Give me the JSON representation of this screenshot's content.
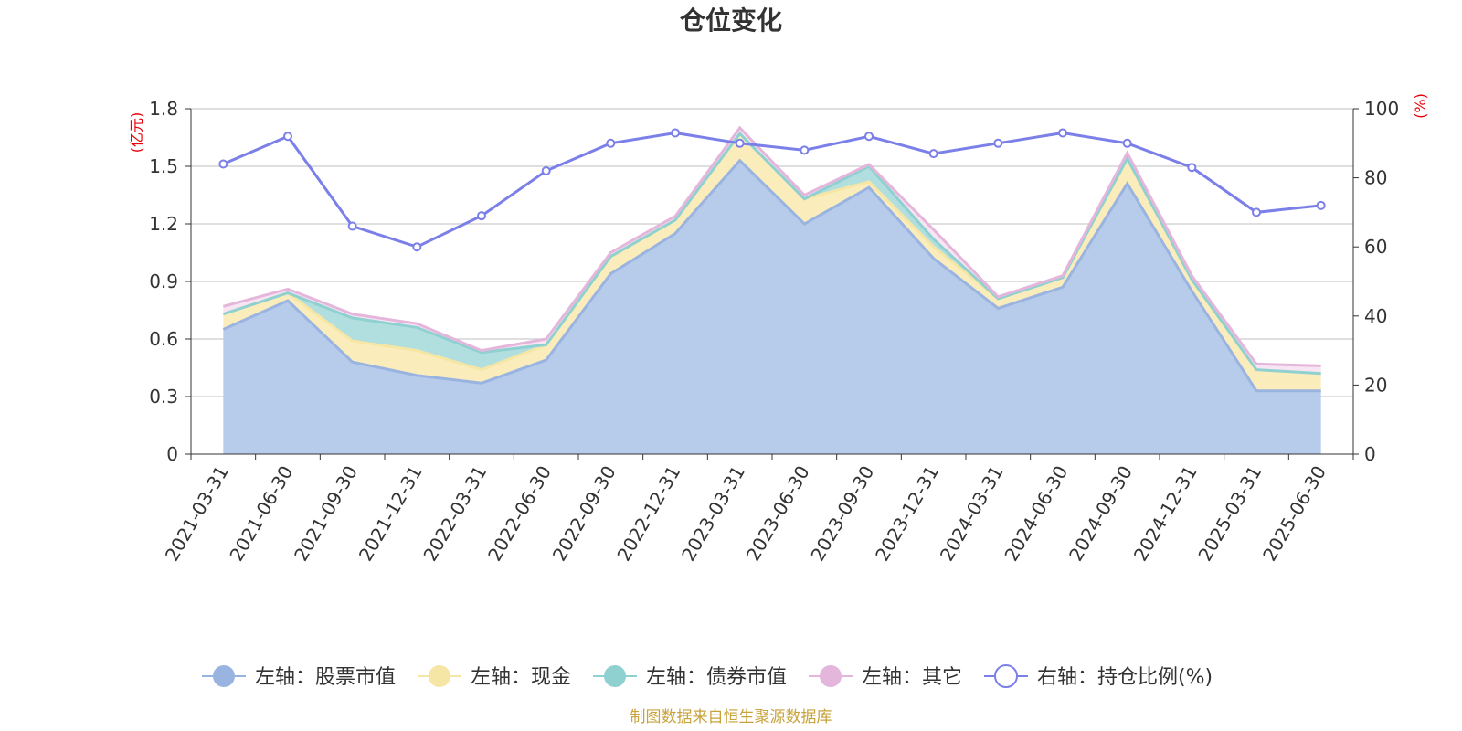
{
  "chart_data": {
    "type": "area",
    "title": "仓位变化",
    "left_axis": {
      "unit_label": "(亿元)",
      "ylim": [
        0,
        1.8
      ],
      "ticks": [
        "0",
        "0.3",
        "0.6",
        "0.9",
        "1.2",
        "1.5",
        "1.8"
      ]
    },
    "right_axis": {
      "unit_label": "(%)",
      "ylim": [
        0,
        100
      ],
      "ticks": [
        "0",
        "20",
        "40",
        "60",
        "80",
        "100"
      ]
    },
    "categories": [
      "2021-03-31",
      "2021-06-30",
      "2021-09-30",
      "2021-12-31",
      "2022-03-31",
      "2022-06-30",
      "2022-09-30",
      "2022-12-31",
      "2023-03-31",
      "2023-06-30",
      "2023-09-30",
      "2023-12-31",
      "2024-03-31",
      "2024-06-30",
      "2024-09-30",
      "2024-12-31",
      "2025-03-31",
      "2025-06-30"
    ],
    "series": [
      {
        "name": "左轴：股票市值",
        "axis": "left",
        "stack": "total",
        "color": "#9ab4e2",
        "fill": "#b7cbea",
        "values": [
          0.65,
          0.8,
          0.48,
          0.41,
          0.37,
          0.49,
          0.94,
          1.15,
          1.53,
          1.2,
          1.39,
          1.02,
          0.76,
          0.87,
          1.41,
          0.85,
          0.33,
          0.33
        ]
      },
      {
        "name": "左轴：现金",
        "axis": "left",
        "stack": "total",
        "color": "#f6e6a5",
        "fill": "#faedbb",
        "values": [
          0.08,
          0.04,
          0.11,
          0.13,
          0.07,
          0.08,
          0.09,
          0.07,
          0.14,
          0.13,
          0.03,
          0.06,
          0.05,
          0.05,
          0.13,
          0.06,
          0.11,
          0.09
        ]
      },
      {
        "name": "左轴：债券市值",
        "axis": "left",
        "stack": "total",
        "color": "#8fd0d1",
        "fill": "#b1dedf",
        "values": [
          0,
          0,
          0.12,
          0.12,
          0.09,
          0,
          0,
          0,
          0,
          0,
          0.08,
          0.04,
          0,
          0,
          0,
          0,
          0,
          0
        ]
      },
      {
        "name": "左轴：其它",
        "axis": "left",
        "stack": "total",
        "color": "#e5b6dc",
        "fill": "#f7e5f3",
        "values": [
          0.04,
          0.02,
          0.02,
          0.02,
          0.01,
          0.03,
          0.02,
          0.02,
          0.03,
          0.02,
          0.01,
          0.05,
          0.01,
          0.01,
          0.03,
          0.02,
          0.03,
          0.04
        ]
      },
      {
        "name": "右轴：持仓比例(%)",
        "axis": "right",
        "type": "line",
        "color": "#7b7fe8",
        "values": [
          84,
          92,
          66,
          60,
          69,
          82,
          90,
          93,
          90,
          88,
          92,
          87,
          90,
          93,
          90,
          83,
          70,
          72
        ]
      }
    ],
    "grid": true,
    "legend_position": "bottom",
    "source_note": "制图数据来自恒生聚源数据库"
  }
}
